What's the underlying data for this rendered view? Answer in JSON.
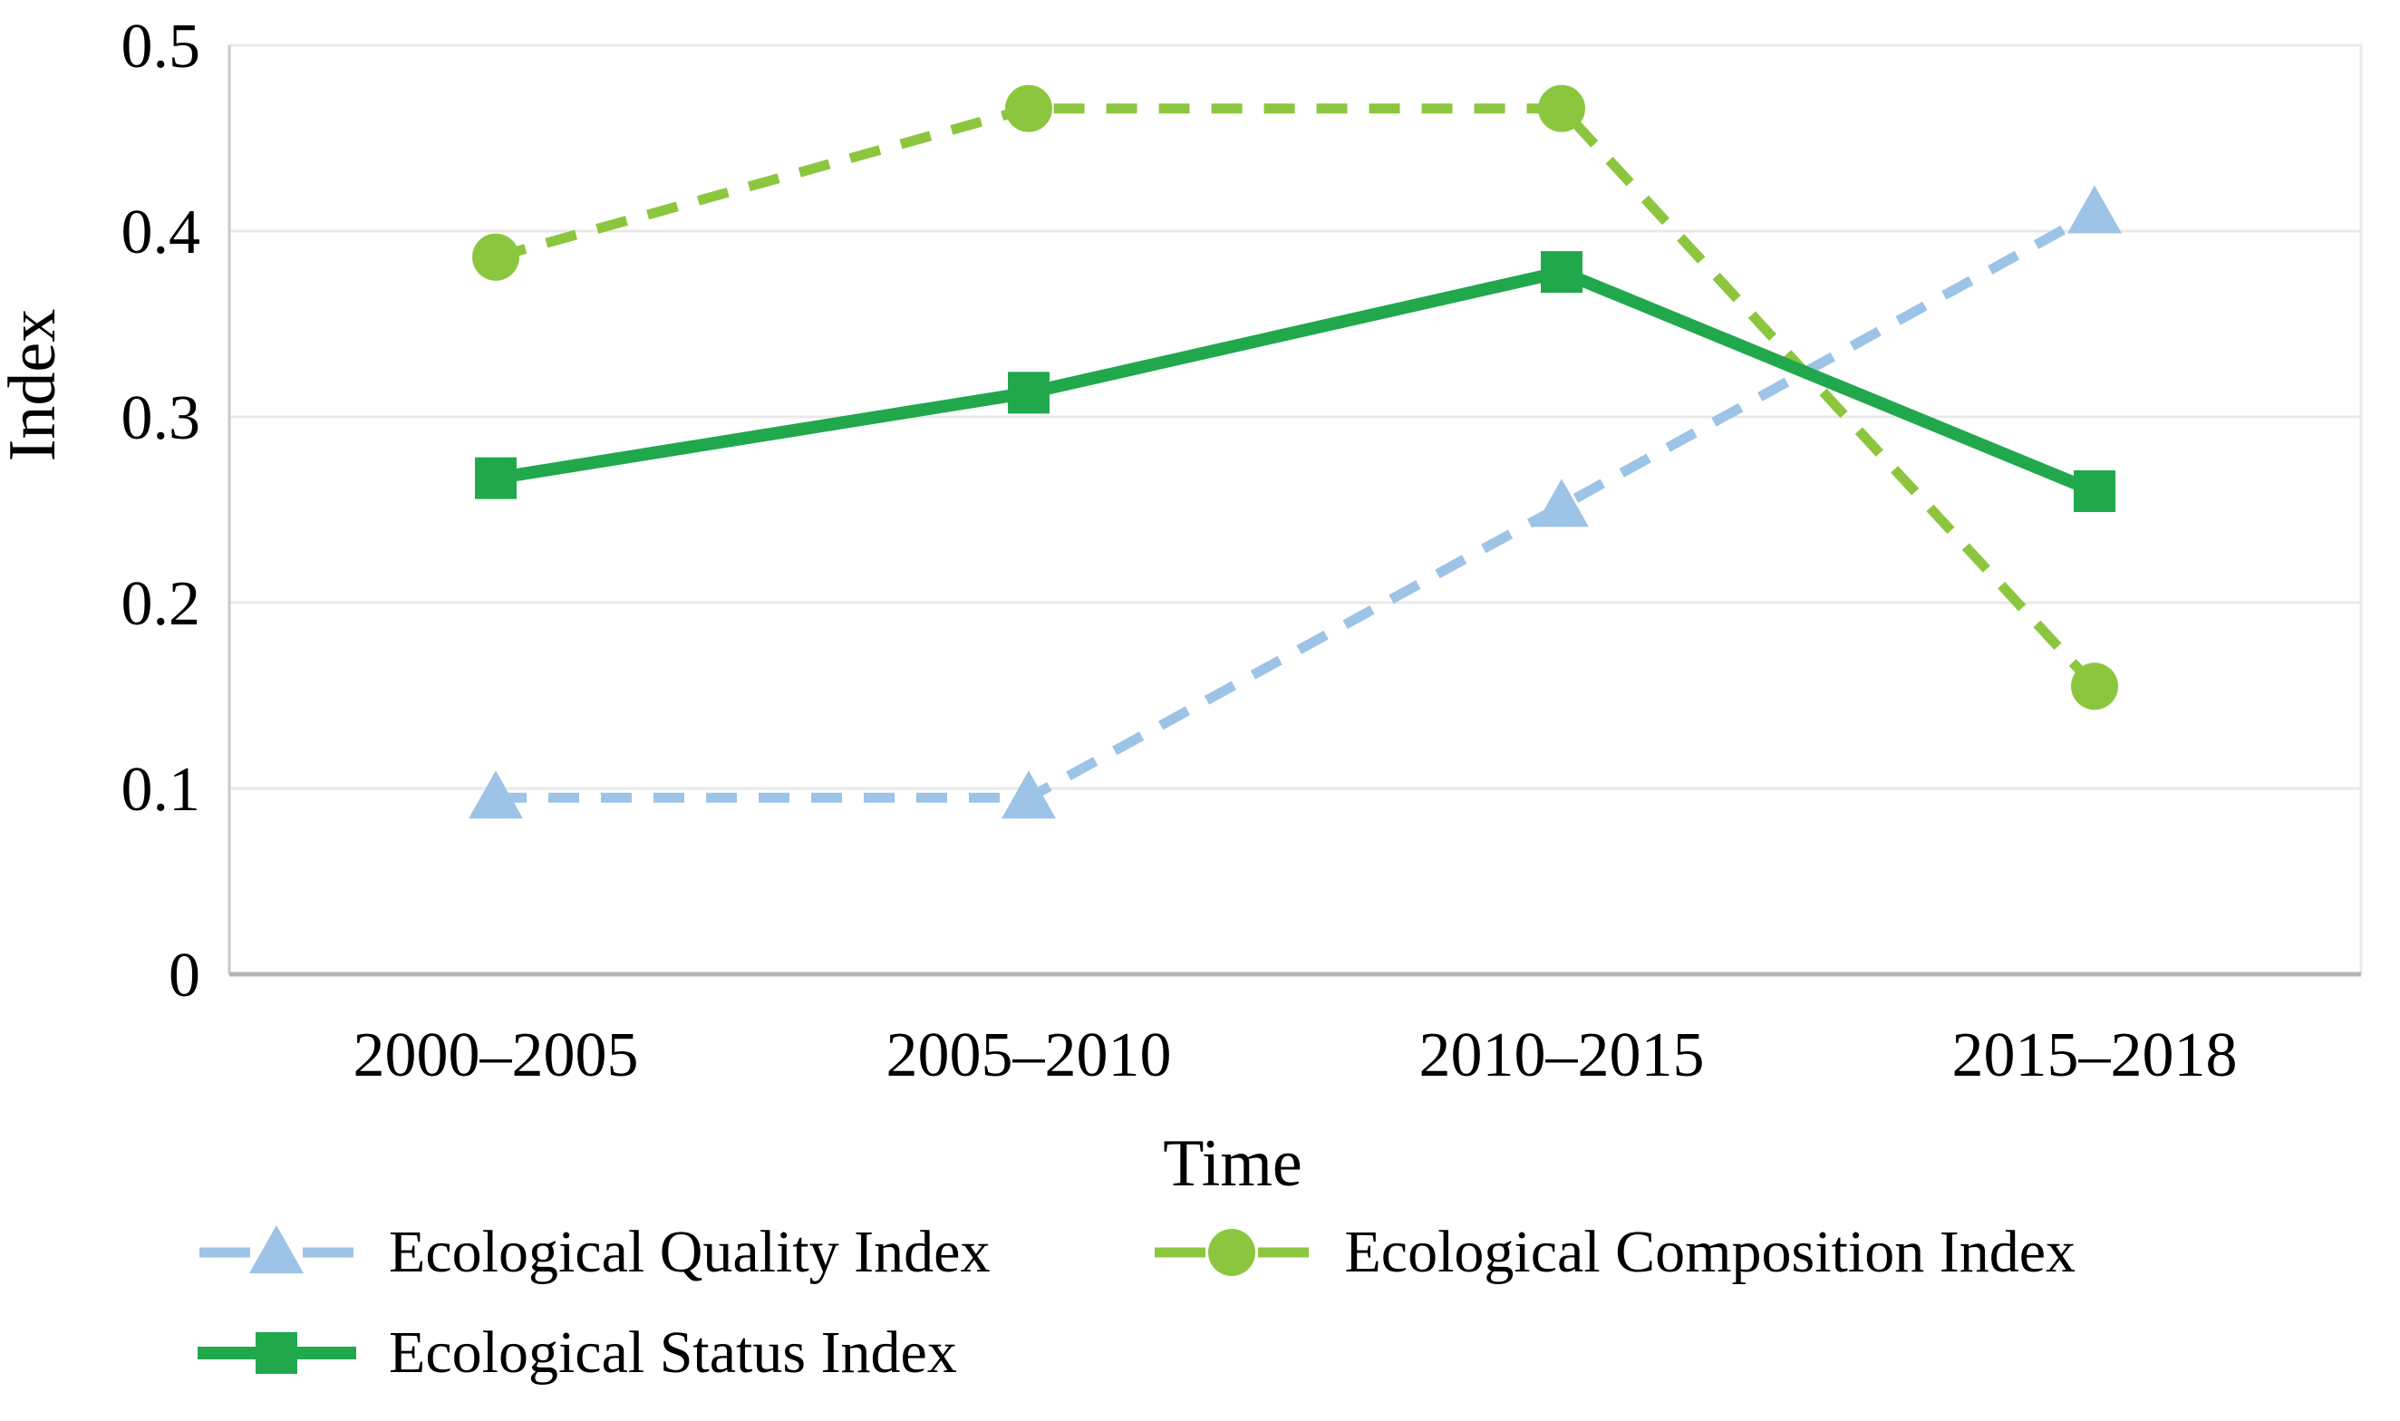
{
  "chart_data": {
    "type": "line",
    "title": "",
    "xlabel": "Time",
    "ylabel": "Index",
    "categories": [
      "2000–2005",
      "2005–2010",
      "2010–2015",
      "2015–2018"
    ],
    "series": [
      {
        "name": "Ecological Quality Index",
        "values": [
          0.095,
          0.095,
          0.252,
          0.41
        ],
        "color": "#9DC3E6",
        "line": "dashed",
        "marker": "triangle"
      },
      {
        "name": "Ecological Composition Index",
        "values": [
          0.386,
          0.466,
          0.466,
          0.155
        ],
        "color": "#8CC63F",
        "line": "dashed",
        "marker": "circle"
      },
      {
        "name": "Ecological Status Index",
        "values": [
          0.267,
          0.313,
          0.378,
          0.26
        ],
        "color": "#21A84C",
        "line": "solid",
        "marker": "square"
      }
    ],
    "ylim": [
      0,
      0.5
    ],
    "yticks": [
      0,
      0.1,
      0.2,
      0.3,
      0.4,
      0.5
    ],
    "ytick_labels": [
      "0",
      "0.1",
      "0.2",
      "0.3",
      "0.4",
      "0.5"
    ],
    "grid": true,
    "legend_position": "bottom",
    "colors": {
      "gridline": "#E9E9E9",
      "axis_line": "#C9C9C9",
      "bottom_axis_line": "#B3B3B3",
      "text": "#000000"
    }
  },
  "legend": {
    "rows": [
      [
        "Ecological Quality Index",
        "Ecological Composition Index"
      ],
      [
        "Ecological Status Index"
      ]
    ]
  }
}
